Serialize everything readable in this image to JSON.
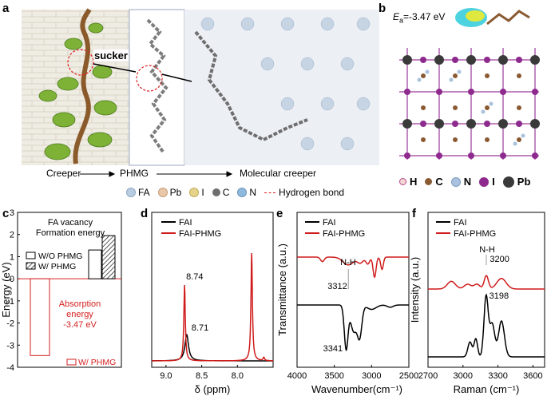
{
  "panels": {
    "a": {
      "label": "a",
      "sucker_label": "sucker",
      "flow": [
        "Creeper",
        "PHMG",
        "Molecular creeper"
      ],
      "legend": [
        {
          "text": "FA",
          "color": "#b8cde2"
        },
        {
          "text": "Pb",
          "color": "#e9c7a8"
        },
        {
          "text": "I",
          "color": "#e5d38a"
        },
        {
          "text": "C",
          "color": "#6e6e6e"
        },
        {
          "text": "N",
          "color": "#8fb9dc"
        },
        {
          "text": "Hydrogen bond",
          "color": "#e02020"
        }
      ]
    },
    "b": {
      "label": "b",
      "energy_symbol": "E",
      "energy_subscript": "a",
      "energy_value": "=-3.47 eV",
      "legend": [
        {
          "text": "H",
          "color": "#f3d6d6"
        },
        {
          "text": "C",
          "color": "#8a5a32"
        },
        {
          "text": "N",
          "color": "#a9c3de"
        },
        {
          "text": "I",
          "color": "#8e2a8e"
        },
        {
          "text": "Pb",
          "color": "#3a3a3a"
        }
      ]
    },
    "c": {
      "label": "c"
    },
    "d": {
      "label": "d"
    },
    "e": {
      "label": "e"
    },
    "f": {
      "label": "f"
    }
  },
  "chart_data": [
    {
      "panel": "c",
      "type": "bar",
      "title": "FA vacancy Formation energy",
      "ylabel": "Energy (eV)",
      "ylim": [
        -4,
        3
      ],
      "yticks": [
        -4,
        -3,
        -2,
        -1,
        0,
        1,
        2,
        3
      ],
      "ytick_labels": [
        "-4",
        "-3",
        "-2",
        "-1",
        "0",
        "1",
        "2",
        "3"
      ],
      "series": [
        {
          "name": "W/O PHMG",
          "values": [
            1.3
          ],
          "color": "#ffffff",
          "hatch": false
        },
        {
          "name": "W/ PHMG",
          "values": [
            1.95
          ],
          "color": "#ffffff",
          "hatch": true
        }
      ],
      "absorption": {
        "name": "W/ PHMG",
        "value": -3.47,
        "color": "#d62020"
      },
      "annotation_lines": [
        "Absorption",
        "energy",
        "-3.47 eV"
      ]
    },
    {
      "panel": "d",
      "type": "line",
      "xlabel": "δ (ppm)",
      "xlim": [
        9.2,
        7.5
      ],
      "xticks": [
        9.0,
        8.5,
        8.0
      ],
      "xtick_labels": [
        "9.0",
        "8.5",
        "8.0"
      ],
      "series": [
        {
          "name": "FAI",
          "color": "#000000",
          "peaks": [
            {
              "x": 8.71,
              "h": 0.33
            }
          ]
        },
        {
          "name": "FAI-PHMG",
          "color": "#d01c1c",
          "peaks": [
            {
              "x": 8.74,
              "h": 0.95
            },
            {
              "x": 7.8,
              "h": 1.35
            },
            {
              "x": 7.63,
              "h": 0.04
            }
          ]
        }
      ],
      "annotations": [
        "8.74",
        "8.71"
      ]
    },
    {
      "panel": "e",
      "type": "line",
      "xlabel": "Wavenumber(cm⁻¹)",
      "ylabel": "Transmittance (a.u.)",
      "xlim": [
        4000,
        2500
      ],
      "xticks": [
        4000,
        3500,
        3000,
        2500
      ],
      "xtick_labels": [
        "4000",
        "3500",
        "3000",
        "2500"
      ],
      "series": [
        {
          "name": "FAI",
          "color": "#000000"
        },
        {
          "name": "FAI-PHMG",
          "color": "#d01c1c"
        }
      ],
      "annotations": [
        "N-H",
        "3312",
        "3341"
      ]
    },
    {
      "panel": "f",
      "type": "line",
      "xlabel": "Raman (cm⁻¹)",
      "ylabel": "Intensity (a.u.)",
      "xlim": [
        2700,
        3700
      ],
      "xticks": [
        2700,
        3000,
        3300,
        3600
      ],
      "xtick_labels": [
        "2700",
        "3000",
        "3300",
        "3600"
      ],
      "series": [
        {
          "name": "FAI",
          "color": "#000000"
        },
        {
          "name": "FAI-PHMG",
          "color": "#d01c1c"
        }
      ],
      "annotations": [
        "N-H",
        "3200",
        "3198"
      ]
    }
  ]
}
